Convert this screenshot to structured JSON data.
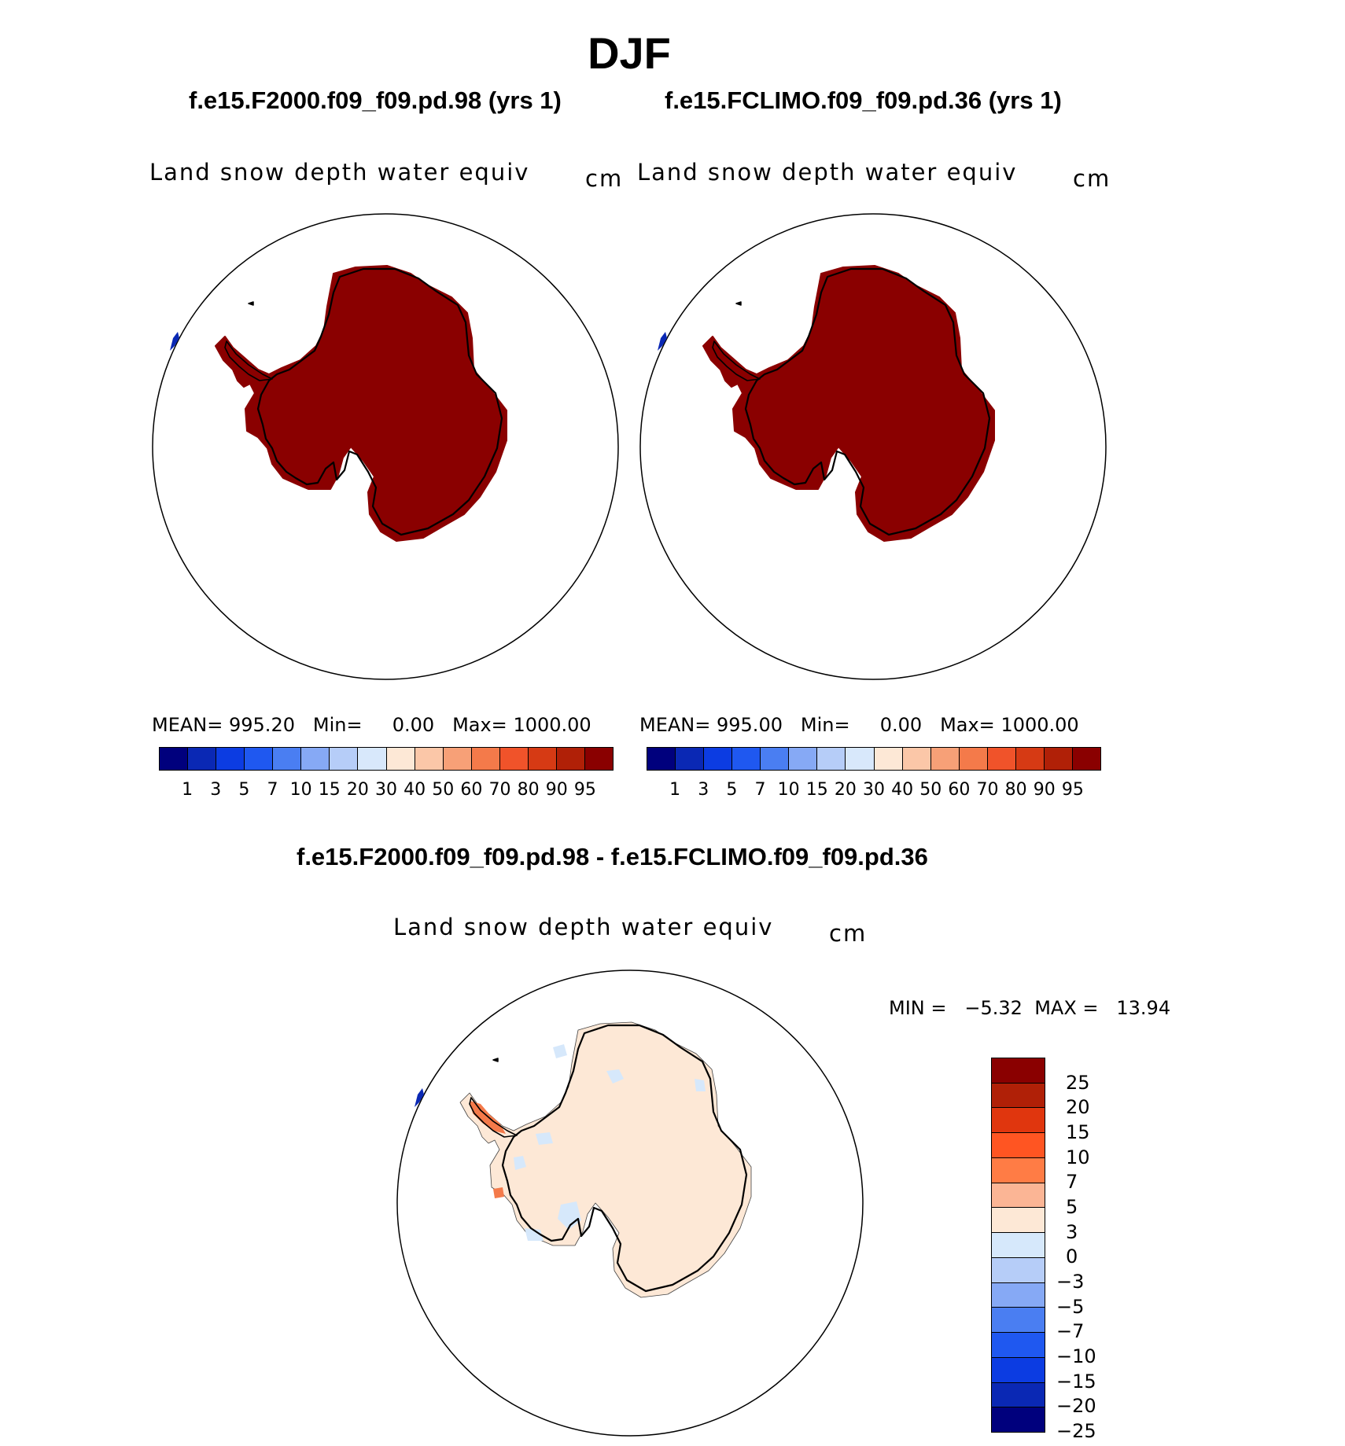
{
  "figure": {
    "title": "DJF",
    "panels": [
      {
        "id": "left",
        "case_title": "f.e15.F2000.f09_f09.pd.98 (yrs 1)",
        "variable": "Land snow depth water equiv",
        "units": "cm",
        "mean_label": "MEAN=",
        "mean_value": "995.20",
        "min_label": "Min=",
        "min_value": "0.00",
        "max_label": "Max=",
        "max_value": "1000.00"
      },
      {
        "id": "right",
        "case_title": "f.e15.FCLIMO.f09_f09.pd.36 (yrs 1)",
        "variable": "Land snow depth water equiv",
        "units": "cm",
        "mean_label": "MEAN=",
        "mean_value": "995.00",
        "min_label": "Min=",
        "min_value": "0.00",
        "max_label": "Max=",
        "max_value": "1000.00"
      }
    ],
    "diff_panel": {
      "case_title": "f.e15.F2000.f09_f09.pd.98 - f.e15.FCLIMO.f09_f09.pd.36",
      "variable": "Land snow depth water equiv",
      "units": "cm",
      "min_label": "MIN =",
      "min_value": "−5.32",
      "max_label": "MAX =",
      "max_value": "13.94"
    },
    "field_colorbar": {
      "colors": [
        "#00007d",
        "#0a28b4",
        "#0c3ce2",
        "#1f58f0",
        "#4a7ef2",
        "#86a9f5",
        "#b6cdf8",
        "#d8e8fb",
        "#fde8d6",
        "#fbc7a8",
        "#f7a077",
        "#f47a4a",
        "#f0532a",
        "#d63a14",
        "#b02007",
        "#8a0000"
      ],
      "labels": [
        "1",
        "3",
        "5",
        "7",
        "10",
        "15",
        "20",
        "30",
        "40",
        "50",
        "60",
        "70",
        "80",
        "90",
        "95"
      ]
    },
    "diff_colorbar": {
      "colors": [
        "#8a0000",
        "#b02007",
        "#e0360e",
        "#ff5522",
        "#ff7c45",
        "#fbb595",
        "#fde8d6",
        "#d6e8fb",
        "#b6cdf8",
        "#86a9f5",
        "#4a7ef2",
        "#1f58f0",
        "#0c3ce2",
        "#0a28b4",
        "#00007d"
      ],
      "labels": [
        "25",
        "20",
        "15",
        "10",
        "7",
        "5",
        "3",
        "0",
        "−3",
        "−5",
        "−7",
        "−10",
        "−15",
        "−20",
        "−25"
      ]
    },
    "map_colors": {
      "field_land": "#8a0000",
      "diff_land": "#fde8d6",
      "diff_neg_patch": "#d6e8fb",
      "diff_pos_patch": "#f47a4a",
      "coast": "#000000",
      "blue_patch": "#0a28b4"
    }
  }
}
